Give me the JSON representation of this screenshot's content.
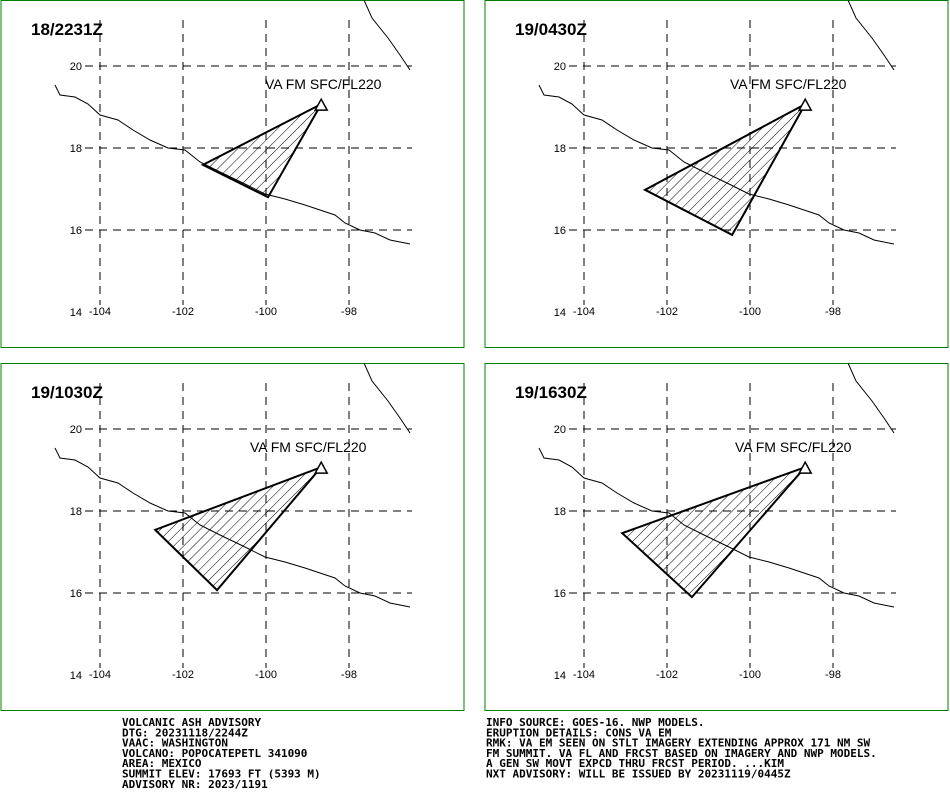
{
  "panels": [
    {
      "title": "18/2231Z",
      "label": "VA FM SFC/FL220",
      "polygon": [
        [
          -98.67,
          19.07
        ],
        [
          -101.52,
          17.59
        ],
        [
          -99.95,
          16.8
        ]
      ]
    },
    {
      "title": "19/0430Z",
      "label": "VA FM SFC/FL220",
      "polygon": [
        [
          -98.67,
          19.07
        ],
        [
          -102.53,
          16.98
        ],
        [
          -100.43,
          15.88
        ]
      ]
    },
    {
      "title": "19/1030Z",
      "label": "VA FM SFC/FL220",
      "polygon": [
        [
          -98.67,
          19.07
        ],
        [
          -102.67,
          17.54
        ],
        [
          -101.18,
          16.07
        ]
      ]
    },
    {
      "title": "19/1630Z",
      "label": "VA FM SFC/FL220",
      "polygon": [
        [
          -98.67,
          19.07
        ],
        [
          -103.08,
          17.46
        ],
        [
          -101.4,
          15.9
        ]
      ]
    }
  ],
  "lat_ticks": [
    20,
    18,
    16,
    14
  ],
  "lon_ticks": [
    -104,
    -102,
    -100,
    -98
  ],
  "footer": {
    "left": [
      "VOLCANIC ASH ADVISORY",
      "DTG: 20231118/2244Z",
      "VAAC: WASHINGTON",
      "VOLCANO: POPOCATEPETL 341090",
      "AREA: MEXICO",
      "SUMMIT ELEV: 17693 FT (5393 M)",
      "ADVISORY NR: 2023/1191"
    ],
    "right": [
      "INFO SOURCE: GOES-16. NWP MODELS.",
      "ERUPTION DETAILS: CONS VA EM",
      "RMK: VA EM SEEN ON STLT IMAGERY EXTENDING APPROX 171 NM SW",
      "FM SUMMIT. VA FL AND FRCST BASED ON IMAGERY AND NWP MODELS.",
      "A GEN SW MOVT EXPCD THRU FRCST PERIOD. ...KIM",
      "NXT ADVISORY: WILL BE ISSUED BY 20231119/0445Z"
    ]
  }
}
